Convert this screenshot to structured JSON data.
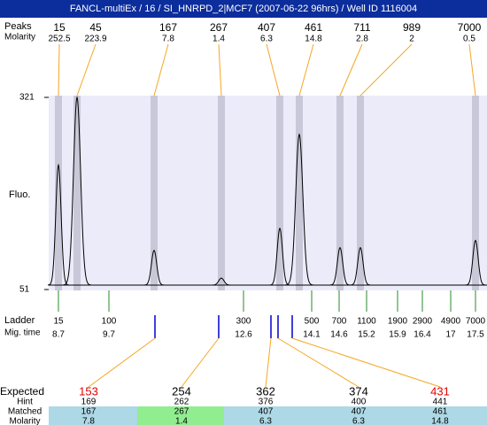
{
  "title": "FANCL-multiEx / 16 / SI_HNRPD_2|MCF7 (2007-06-22 96hrs) / Well ID 1116004",
  "chart_data": {
    "type": "electropherogram",
    "y_label": "Fluo.",
    "ylim": [
      51,
      321
    ],
    "yticks": [
      51,
      321
    ],
    "peaks": {
      "label": "Peaks",
      "sizes": [
        15,
        45,
        167,
        267,
        407,
        461,
        711,
        989,
        7000
      ],
      "molarity_label": "Molarity",
      "molarity": [
        252.5,
        223.9,
        7.8,
        1.4,
        6.3,
        14.8,
        2.8,
        2,
        0.5
      ],
      "heights": [
        226,
        321,
        106,
        67,
        137,
        269,
        110,
        110,
        120
      ],
      "color": "#000000"
    },
    "ladder": {
      "label": "Ladder",
      "sizes": [
        15,
        100,
        300,
        500,
        700,
        1100,
        1900,
        2900,
        4900,
        7000
      ],
      "mig_label": "Mig. time",
      "mig_times": [
        8.7,
        9.7,
        12.6,
        14.1,
        14.6,
        15.2,
        15.9,
        16.4,
        17,
        17.5
      ]
    },
    "expected": {
      "label": "Expected",
      "values": [
        153,
        254,
        362,
        374,
        431
      ],
      "flagged": [
        true,
        false,
        false,
        false,
        true
      ],
      "hint_label": "Hint",
      "hint": [
        169,
        262,
        376,
        400,
        441
      ],
      "matched_label": "Matched",
      "matched": [
        167,
        267,
        407,
        407,
        461
      ],
      "molarity_label": "Molarity",
      "molarity": [
        7.8,
        1.4,
        6.3,
        6.3,
        14.8
      ],
      "highlight": [
        false,
        true,
        false,
        false,
        false
      ]
    }
  }
}
